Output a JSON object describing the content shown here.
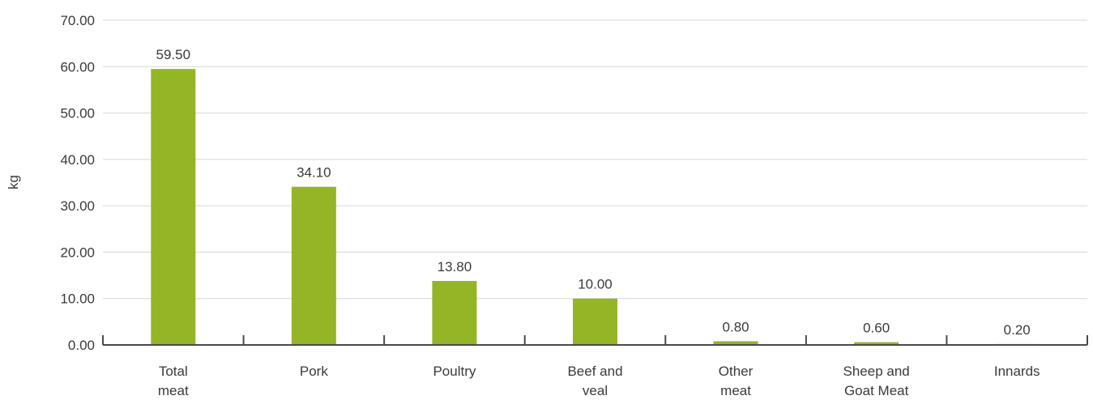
{
  "chart_data": {
    "type": "bar",
    "title": "",
    "xlabel": "",
    "ylabel": "kg",
    "ylim": [
      0,
      70
    ],
    "yticks": [
      "0.00",
      "10.00",
      "20.00",
      "30.00",
      "40.00",
      "50.00",
      "60.00",
      "70.00"
    ],
    "grid": true,
    "categories": [
      [
        "Total",
        "meat"
      ],
      [
        "Pork"
      ],
      [
        "Poultry"
      ],
      [
        "Beef and",
        "veal"
      ],
      [
        "Other",
        "meat"
      ],
      [
        "Sheep and",
        "Goat Meat"
      ],
      [
        "Innards"
      ]
    ],
    "values": [
      59.5,
      34.1,
      13.8,
      10.0,
      0.8,
      0.6,
      0.2
    ],
    "data_labels": [
      "59.50",
      "34.10",
      "13.80",
      "10.00",
      "0.80",
      "0.60",
      "0.20"
    ],
    "colors": {
      "bar": "#94b526",
      "grid": "#d6d6d6",
      "axis": "#4a4a4a",
      "text": "#3a3a3a"
    }
  }
}
